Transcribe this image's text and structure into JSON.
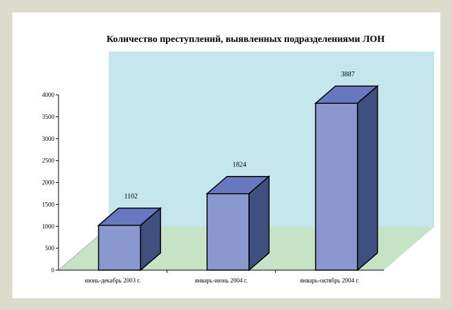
{
  "chart_data": {
    "type": "bar",
    "title": "Количество преступлений, выявленных подразделениями ЛОН",
    "categories": [
      "июнь-декабрь 2003 г.",
      "январь-июнь 2004 г.",
      "январь-октябрь 2004 г."
    ],
    "values": [
      1102,
      1824,
      3887
    ],
    "value_labels": [
      "1102",
      "1824",
      "3887"
    ],
    "ylim": [
      0,
      4000
    ],
    "yticks": [
      0,
      500,
      1000,
      1500,
      2000,
      2500,
      3000,
      3500,
      4000
    ],
    "ytick_labels": [
      "0",
      "500",
      "1000",
      "1500",
      "2000",
      "2500",
      "3000",
      "3500",
      "4000"
    ],
    "colors": {
      "bar_front": "#8b97cf",
      "bar_top": "#6878c0",
      "bar_side": "#3f4f80",
      "back_wall": "#c5e6ec",
      "floor": "#c6e3c6",
      "outline": "#000000"
    },
    "legend": "none",
    "grid": false,
    "style": "3d-column"
  }
}
